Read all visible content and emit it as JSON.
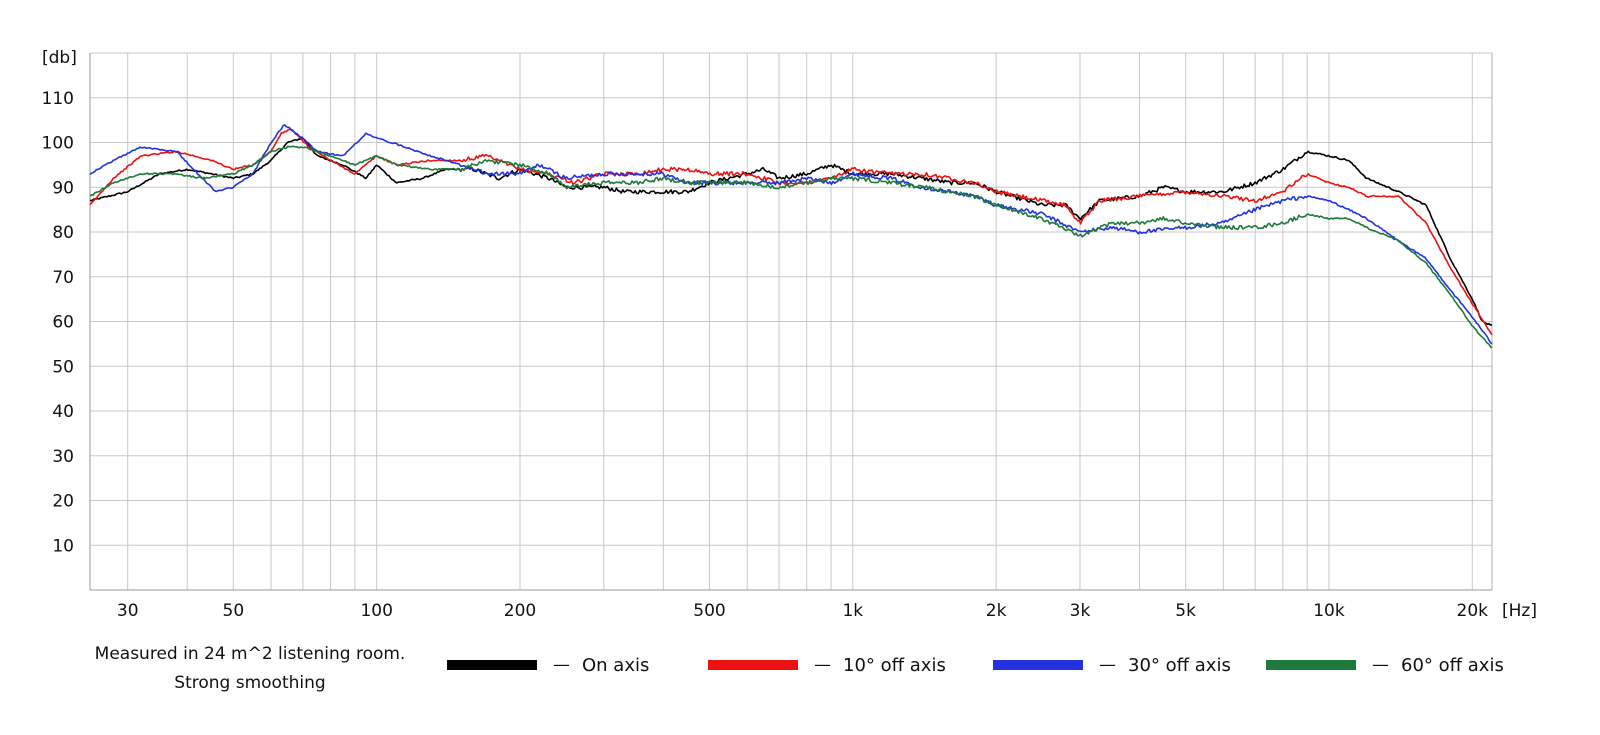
{
  "chart_data": {
    "type": "line",
    "ylabel": "[db]",
    "xlabel": "[Hz]",
    "xscale": "log",
    "xlim": [
      25,
      22000
    ],
    "ylim": [
      0,
      120
    ],
    "x_ticks": [
      {
        "value": 30,
        "label": "30"
      },
      {
        "value": 50,
        "label": "50"
      },
      {
        "value": 100,
        "label": "100"
      },
      {
        "value": 200,
        "label": "200"
      },
      {
        "value": 500,
        "label": "500"
      },
      {
        "value": 1000,
        "label": "1k"
      },
      {
        "value": 2000,
        "label": "2k"
      },
      {
        "value": 3000,
        "label": "3k"
      },
      {
        "value": 5000,
        "label": "5k"
      },
      {
        "value": 10000,
        "label": "10k"
      },
      {
        "value": 20000,
        "label": "20k"
      }
    ],
    "y_ticks": [
      10,
      20,
      30,
      40,
      50,
      60,
      70,
      80,
      90,
      100,
      110
    ],
    "grid": true,
    "legend_position": "bottom",
    "series": [
      {
        "name": "On axis",
        "color": "#000000",
        "points": [
          [
            25,
            87
          ],
          [
            30,
            89
          ],
          [
            35,
            93
          ],
          [
            40,
            94
          ],
          [
            45,
            93
          ],
          [
            50,
            92
          ],
          [
            55,
            93
          ],
          [
            60,
            96
          ],
          [
            65,
            100
          ],
          [
            70,
            101
          ],
          [
            75,
            97
          ],
          [
            85,
            95
          ],
          [
            95,
            92
          ],
          [
            100,
            95
          ],
          [
            110,
            91
          ],
          [
            125,
            92
          ],
          [
            140,
            94
          ],
          [
            160,
            94
          ],
          [
            180,
            92
          ],
          [
            200,
            94
          ],
          [
            230,
            92
          ],
          [
            250,
            90
          ],
          [
            300,
            90
          ],
          [
            330,
            89
          ],
          [
            400,
            89
          ],
          [
            450,
            89
          ],
          [
            500,
            91
          ],
          [
            600,
            93
          ],
          [
            650,
            94
          ],
          [
            700,
            92
          ],
          [
            800,
            93
          ],
          [
            900,
            95
          ],
          [
            1000,
            93
          ],
          [
            1200,
            93
          ],
          [
            1400,
            92
          ],
          [
            1600,
            91
          ],
          [
            1800,
            91
          ],
          [
            2000,
            89
          ],
          [
            2500,
            86
          ],
          [
            2800,
            86
          ],
          [
            3000,
            83
          ],
          [
            3300,
            87
          ],
          [
            4000,
            88
          ],
          [
            4500,
            90
          ],
          [
            5000,
            89
          ],
          [
            6000,
            89
          ],
          [
            7000,
            91
          ],
          [
            8000,
            94
          ],
          [
            9000,
            98
          ],
          [
            10000,
            97
          ],
          [
            11000,
            96
          ],
          [
            12000,
            92
          ],
          [
            14000,
            89
          ],
          [
            16000,
            86
          ],
          [
            18000,
            74
          ],
          [
            20000,
            65
          ],
          [
            21000,
            60
          ],
          [
            22000,
            59
          ]
        ]
      },
      {
        "name": "10° off axis",
        "color": "#ee1111",
        "points": [
          [
            25,
            86
          ],
          [
            28,
            92
          ],
          [
            32,
            97
          ],
          [
            38,
            98
          ],
          [
            45,
            96
          ],
          [
            50,
            94
          ],
          [
            55,
            95
          ],
          [
            60,
            98
          ],
          [
            63,
            102
          ],
          [
            66,
            103
          ],
          [
            72,
            99
          ],
          [
            80,
            96
          ],
          [
            90,
            93
          ],
          [
            100,
            97
          ],
          [
            110,
            95
          ],
          [
            130,
            96
          ],
          [
            150,
            96
          ],
          [
            170,
            97
          ],
          [
            200,
            94
          ],
          [
            230,
            93
          ],
          [
            260,
            91
          ],
          [
            300,
            93
          ],
          [
            350,
            93
          ],
          [
            400,
            94
          ],
          [
            450,
            94
          ],
          [
            500,
            93
          ],
          [
            600,
            93
          ],
          [
            650,
            92
          ],
          [
            700,
            91
          ],
          [
            800,
            91
          ],
          [
            900,
            92
          ],
          [
            1000,
            94
          ],
          [
            1200,
            93
          ],
          [
            1400,
            93
          ],
          [
            1600,
            92
          ],
          [
            1800,
            91
          ],
          [
            2000,
            89
          ],
          [
            2500,
            87
          ],
          [
            2800,
            86
          ],
          [
            3000,
            82
          ],
          [
            3300,
            87
          ],
          [
            4000,
            88
          ],
          [
            5000,
            89
          ],
          [
            6000,
            88
          ],
          [
            7000,
            87
          ],
          [
            8000,
            89
          ],
          [
            9000,
            93
          ],
          [
            10000,
            91
          ],
          [
            11000,
            90
          ],
          [
            12000,
            88
          ],
          [
            14000,
            88
          ],
          [
            16000,
            82
          ],
          [
            18000,
            72
          ],
          [
            20000,
            64
          ],
          [
            22000,
            57
          ]
        ]
      },
      {
        "name": "30° off axis",
        "color": "#2233dd",
        "points": [
          [
            25,
            93
          ],
          [
            28,
            96
          ],
          [
            32,
            99
          ],
          [
            38,
            98
          ],
          [
            43,
            92
          ],
          [
            46,
            89
          ],
          [
            50,
            90
          ],
          [
            55,
            93
          ],
          [
            60,
            100
          ],
          [
            64,
            104
          ],
          [
            68,
            102
          ],
          [
            75,
            98
          ],
          [
            85,
            97
          ],
          [
            95,
            102
          ],
          [
            100,
            101
          ],
          [
            115,
            99
          ],
          [
            130,
            97
          ],
          [
            150,
            95
          ],
          [
            170,
            93
          ],
          [
            200,
            93
          ],
          [
            220,
            95
          ],
          [
            250,
            92
          ],
          [
            300,
            93
          ],
          [
            350,
            93
          ],
          [
            400,
            93
          ],
          [
            450,
            91
          ],
          [
            500,
            91
          ],
          [
            600,
            91
          ],
          [
            700,
            91
          ],
          [
            800,
            92
          ],
          [
            900,
            91
          ],
          [
            1000,
            93
          ],
          [
            1200,
            92
          ],
          [
            1400,
            90
          ],
          [
            1600,
            89
          ],
          [
            1800,
            88
          ],
          [
            2000,
            86
          ],
          [
            2500,
            84
          ],
          [
            3000,
            80
          ],
          [
            3500,
            81
          ],
          [
            4000,
            80
          ],
          [
            5000,
            81
          ],
          [
            6000,
            82
          ],
          [
            7000,
            85
          ],
          [
            8000,
            87
          ],
          [
            9000,
            88
          ],
          [
            10000,
            87
          ],
          [
            11000,
            85
          ],
          [
            12000,
            83
          ],
          [
            14000,
            78
          ],
          [
            16000,
            74
          ],
          [
            18000,
            67
          ],
          [
            20000,
            61
          ],
          [
            22000,
            55
          ]
        ]
      },
      {
        "name": "60° off axis",
        "color": "#1d7a3a",
        "points": [
          [
            25,
            88
          ],
          [
            28,
            91
          ],
          [
            32,
            93
          ],
          [
            38,
            93
          ],
          [
            43,
            92
          ],
          [
            50,
            93
          ],
          [
            55,
            95
          ],
          [
            60,
            98
          ],
          [
            65,
            99
          ],
          [
            70,
            99
          ],
          [
            80,
            97
          ],
          [
            90,
            95
          ],
          [
            100,
            97
          ],
          [
            110,
            95
          ],
          [
            130,
            94
          ],
          [
            150,
            94
          ],
          [
            170,
            96
          ],
          [
            200,
            95
          ],
          [
            230,
            93
          ],
          [
            250,
            90
          ],
          [
            300,
            91
          ],
          [
            350,
            91
          ],
          [
            400,
            92
          ],
          [
            450,
            91
          ],
          [
            500,
            91
          ],
          [
            600,
            91
          ],
          [
            700,
            90
          ],
          [
            800,
            91
          ],
          [
            900,
            92
          ],
          [
            1000,
            92
          ],
          [
            1200,
            91
          ],
          [
            1400,
            90
          ],
          [
            1600,
            89
          ],
          [
            1800,
            88
          ],
          [
            2000,
            86
          ],
          [
            2500,
            83
          ],
          [
            3000,
            79
          ],
          [
            3500,
            82
          ],
          [
            4000,
            82
          ],
          [
            4500,
            83
          ],
          [
            5000,
            82
          ],
          [
            6000,
            81
          ],
          [
            7000,
            81
          ],
          [
            8000,
            82
          ],
          [
            9000,
            84
          ],
          [
            10000,
            83
          ],
          [
            11000,
            83
          ],
          [
            12000,
            81
          ],
          [
            14000,
            78
          ],
          [
            16000,
            73
          ],
          [
            18000,
            66
          ],
          [
            20000,
            59
          ],
          [
            22000,
            54
          ]
        ]
      }
    ],
    "notes": [
      "Measured in 24 m^2 listening room.",
      "Strong smoothing"
    ]
  },
  "legend": {
    "dash": "—",
    "items": [
      {
        "label": "On axis",
        "color": "#000000"
      },
      {
        "label": "10° off axis",
        "color": "#ee1111"
      },
      {
        "label": "30° off axis",
        "color": "#2233dd"
      },
      {
        "label": "60° off axis",
        "color": "#1d7a3a"
      }
    ]
  }
}
